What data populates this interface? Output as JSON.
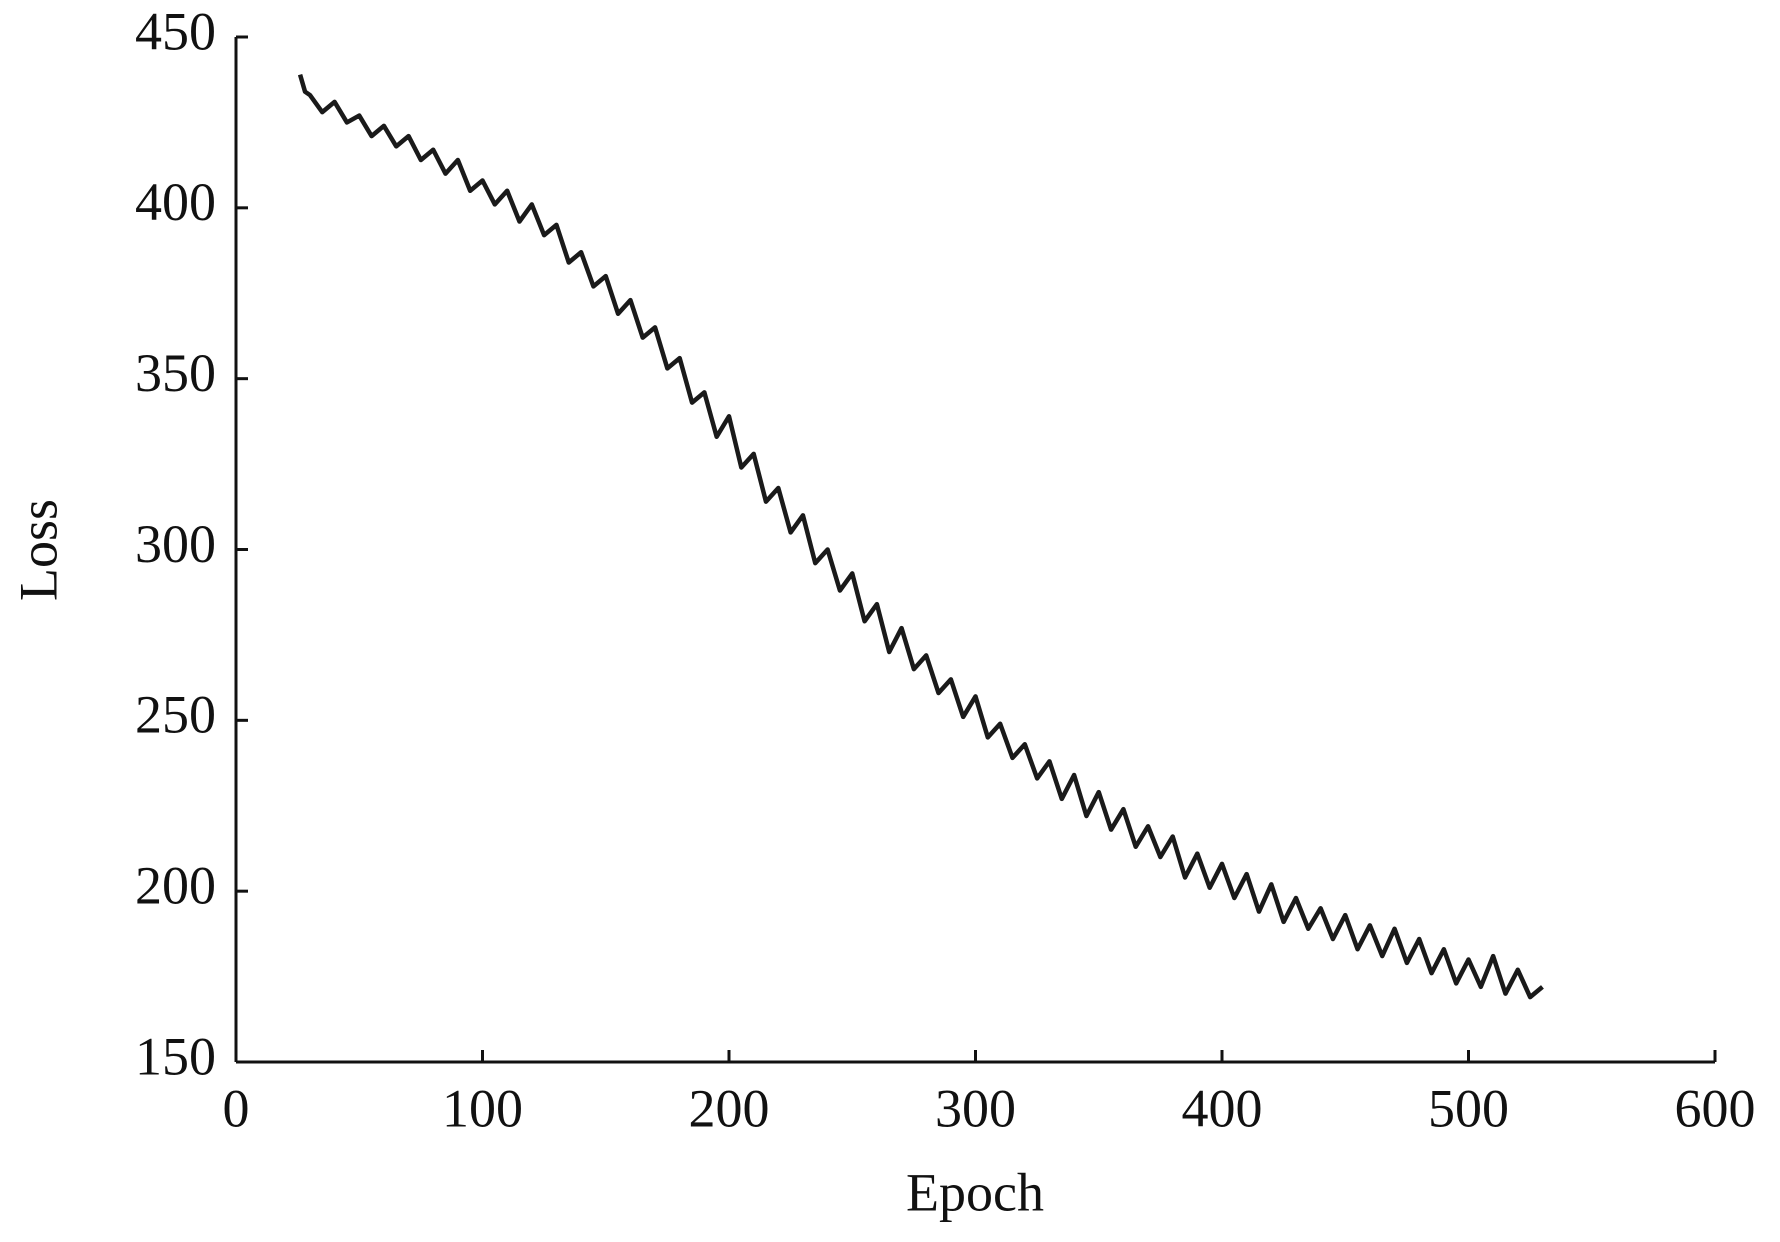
{
  "chart_data": {
    "type": "line",
    "x_label": "Epoch",
    "y_label": "Loss",
    "xlim": [
      0,
      600
    ],
    "xticks": [
      0,
      100,
      200,
      300,
      400,
      500,
      600
    ],
    "ylim": [
      150,
      450
    ],
    "yticks": [
      150,
      200,
      250,
      300,
      350,
      400,
      450
    ],
    "grid": false,
    "series": [
      {
        "color": "#1a1a1a",
        "x": [
          26,
          28,
          30,
          35,
          40,
          45,
          50,
          55,
          60,
          65,
          70,
          75,
          80,
          85,
          90,
          95,
          100,
          105,
          110,
          115,
          120,
          125,
          130,
          135,
          140,
          145,
          150,
          155,
          160,
          165,
          170,
          175,
          180,
          185,
          190,
          195,
          200,
          205,
          210,
          215,
          220,
          225,
          230,
          235,
          240,
          245,
          250,
          255,
          260,
          265,
          270,
          275,
          280,
          285,
          290,
          295,
          300,
          305,
          310,
          315,
          320,
          325,
          330,
          335,
          340,
          345,
          350,
          355,
          360,
          365,
          370,
          375,
          380,
          385,
          390,
          395,
          400,
          405,
          410,
          415,
          420,
          425,
          430,
          435,
          440,
          445,
          450,
          455,
          460,
          465,
          470,
          475,
          480,
          485,
          490,
          495,
          500,
          505,
          510,
          515,
          520,
          525,
          530
        ],
        "values": [
          439,
          434,
          433,
          428,
          431,
          425,
          427,
          421,
          424,
          418,
          421,
          414,
          417,
          410,
          414,
          405,
          408,
          401,
          405,
          396,
          401,
          392,
          395,
          384,
          387,
          377,
          380,
          369,
          373,
          362,
          365,
          353,
          356,
          343,
          346,
          333,
          339,
          324,
          328,
          314,
          318,
          305,
          310,
          296,
          300,
          288,
          293,
          279,
          284,
          270,
          277,
          265,
          269,
          258,
          262,
          251,
          257,
          245,
          249,
          239,
          243,
          233,
          238,
          227,
          234,
          222,
          229,
          218,
          224,
          213,
          219,
          210,
          216,
          204,
          211,
          201,
          208,
          198,
          205,
          194,
          202,
          191,
          198,
          189,
          195,
          186,
          193,
          183,
          190,
          181,
          189,
          179,
          186,
          176,
          183,
          173,
          180,
          172,
          181,
          170,
          177,
          169,
          172
        ]
      }
    ]
  }
}
